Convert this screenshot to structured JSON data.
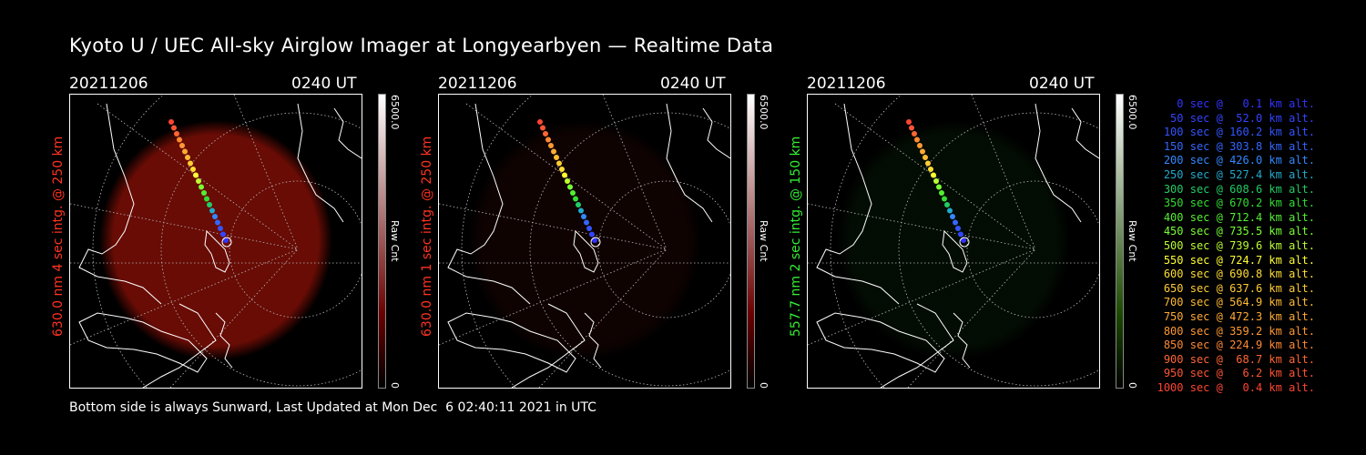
{
  "title": "Kyoto U / UEC All-sky Airglow Imager at Longyearbyen — Realtime Data",
  "footer": "Bottom side is always Sunward, Last Updated at Mon Dec  6 02:40:11 2021 in UTC",
  "colors": {
    "red_label": "#ff3333",
    "green_label": "#33ff33"
  },
  "panels": [
    {
      "date": "20211206",
      "time": "0240 UT",
      "side_label": "630.0 nm 4 sec intg. @ 250 km",
      "side_color": "#ff3322",
      "cbar_max": "6500.0",
      "cbar_label": "Raw Cnt",
      "cbar_min": "0",
      "glow_color": "#7a0e06",
      "glow_level": 0.85,
      "cbar_top": "#ffffff",
      "cbar_bottom": "#6a0000"
    },
    {
      "date": "20211206",
      "time": "0240 UT",
      "side_label": "630.0 nm 1 sec intg. @ 250 km",
      "side_color": "#ff3322",
      "cbar_max": "6500.0",
      "cbar_label": "Raw Cnt",
      "cbar_min": "0",
      "glow_color": "#2a0804",
      "glow_level": 0.35,
      "cbar_top": "#ffffff",
      "cbar_bottom": "#6a0000"
    },
    {
      "date": "20211206",
      "time": "0240 UT",
      "side_label": "557.7 nm 2 sec intg. @ 150 km",
      "side_color": "#33ee33",
      "cbar_max": "6500.0",
      "cbar_label": "Raw Cnt",
      "cbar_min": "0",
      "glow_color": "#0b2a0b",
      "glow_level": 0.3,
      "cbar_top": "#ffffff",
      "cbar_bottom": "#1a4a00"
    }
  ],
  "legend": [
    {
      "text": "0 sec @   0.1 km alt.",
      "color": "#3333ff"
    },
    {
      "text": "50 sec @  52.0 km alt.",
      "color": "#3344ff"
    },
    {
      "text": "100 sec @ 160.2 km alt.",
      "color": "#3355ff"
    },
    {
      "text": "150 sec @ 303.8 km alt.",
      "color": "#3366ff"
    },
    {
      "text": "200 sec @ 426.0 km alt.",
      "color": "#3388ff"
    },
    {
      "text": "250 sec @ 527.4 km alt.",
      "color": "#22aacc"
    },
    {
      "text": "300 sec @ 608.6 km alt.",
      "color": "#22cc66"
    },
    {
      "text": "350 sec @ 670.2 km alt.",
      "color": "#33dd33"
    },
    {
      "text": "400 sec @ 712.4 km alt.",
      "color": "#55ee33"
    },
    {
      "text": "450 sec @ 735.5 km alt.",
      "color": "#77ff33"
    },
    {
      "text": "500 sec @ 739.6 km alt.",
      "color": "#bbff33"
    },
    {
      "text": "550 sec @ 724.7 km alt.",
      "color": "#ffff33"
    },
    {
      "text": "600 sec @ 690.8 km alt.",
      "color": "#ffdd33"
    },
    {
      "text": "650 sec @ 637.6 km alt.",
      "color": "#ffcc33"
    },
    {
      "text": "700 sec @ 564.9 km alt.",
      "color": "#ffbb33"
    },
    {
      "text": "750 sec @ 472.3 km alt.",
      "color": "#ffaa33"
    },
    {
      "text": "800 sec @ 359.2 km alt.",
      "color": "#ff9933"
    },
    {
      "text": "850 sec @ 224.9 km alt.",
      "color": "#ff8833"
    },
    {
      "text": "900 sec @  68.7 km alt.",
      "color": "#ff6633"
    },
    {
      "text": "950 sec @   6.2 km alt.",
      "color": "#ff5533"
    },
    {
      "text": "1000 sec @   0.4 km alt.",
      "color": "#ff4433"
    }
  ]
}
